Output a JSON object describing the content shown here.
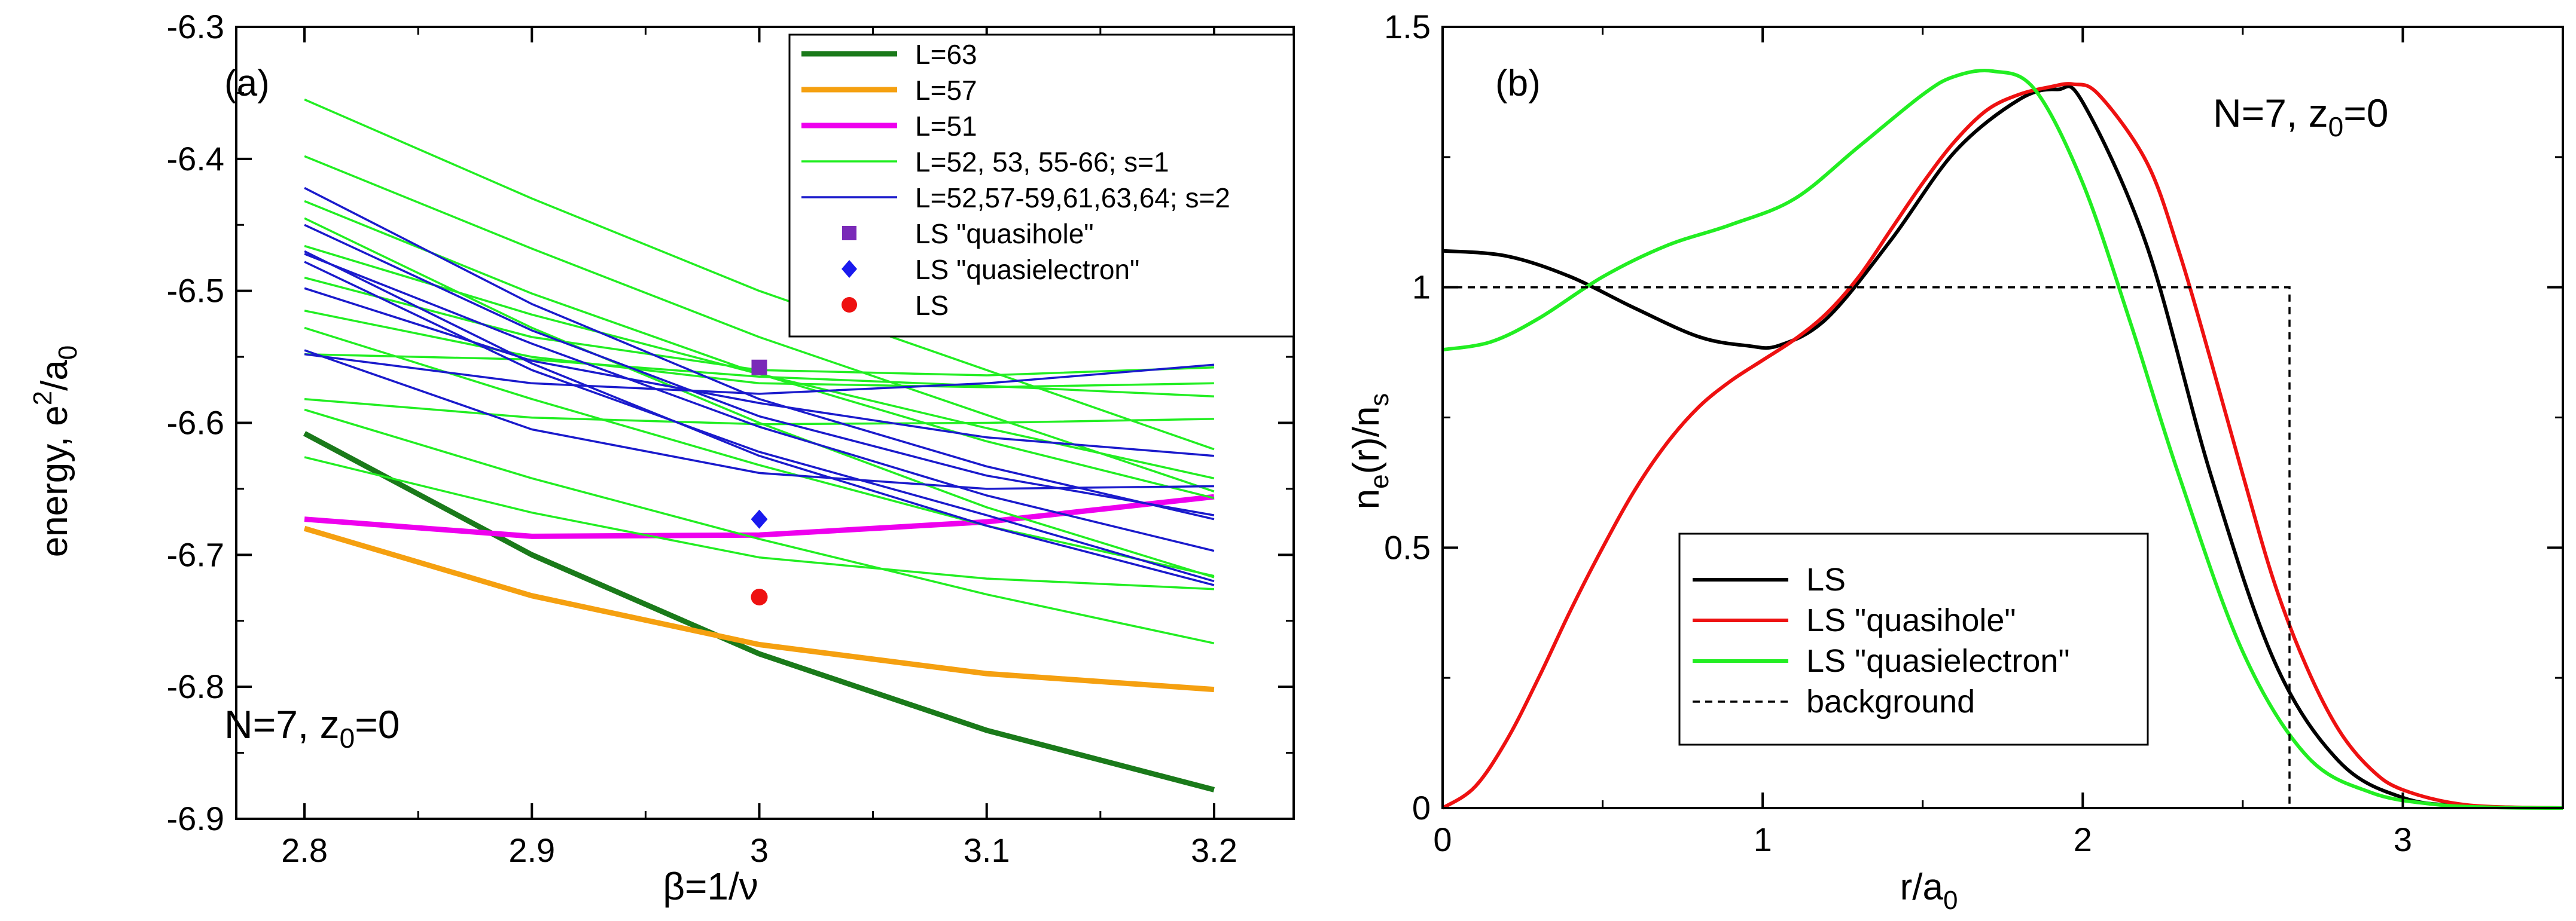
{
  "chart_data": [
    {
      "id": "a",
      "type": "line",
      "panel_label": "(a)",
      "xlabel": "β=1/ν",
      "ylabel": "energy, e²/a₀",
      "ylabel_main": "energy, e",
      "ylabel_sup": "2",
      "ylabel_mid": "/a",
      "ylabel_sub": "0",
      "xlim": [
        2.77,
        3.235
      ],
      "ylim": [
        -6.9,
        -6.3
      ],
      "x_ticks": [
        2.8,
        2.9,
        3.0,
        3.1,
        3.2
      ],
      "x_tick_labels": [
        "2.8",
        "2.9",
        "3",
        "3.1",
        "3.2"
      ],
      "y_ticks": [
        -6.9,
        -6.8,
        -6.7,
        -6.6,
        -6.5,
        -6.4,
        -6.3
      ],
      "y_tick_labels": [
        "-6.9",
        "-6.8",
        "-6.7",
        "-6.6",
        "-6.5",
        "-6.4",
        "-6.3"
      ],
      "annotation": {
        "text": "N=7,   z₀=0",
        "main": "N=7,   z",
        "sub": "0",
        "tail": "=0"
      },
      "legend": {
        "placement": "top-right",
        "entries": [
          {
            "label": "L=63",
            "color": "#1a7a1a",
            "kind": "line",
            "thick": true
          },
          {
            "label": "L=57",
            "color": "#f5a010",
            "kind": "line",
            "thick": true
          },
          {
            "label": "L=51",
            "color": "#ee00ee",
            "kind": "line",
            "thick": true
          },
          {
            "label": "L=52, 53, 55-66; s=1",
            "color": "#22ee22",
            "kind": "line",
            "thick": false
          },
          {
            "label": "L=52,57-59,61,63,64; s=2",
            "color": "#1a1acc",
            "kind": "line",
            "thick": false
          },
          {
            "label": "LS \"quasihole\"",
            "color": "#7a2ab8",
            "kind": "square"
          },
          {
            "label": "LS \"quasielectron\"",
            "color": "#1a1aee",
            "kind": "diamond"
          },
          {
            "label": "LS",
            "color": "#ee1111",
            "kind": "circle"
          }
        ]
      },
      "x": [
        2.8,
        2.9,
        3.0,
        3.1,
        3.2
      ],
      "series": [
        {
          "name": "L=63",
          "color": "#1a7a1a",
          "width": "thick",
          "values": [
            -6.608,
            -6.7,
            -6.775,
            -6.833,
            -6.878
          ]
        },
        {
          "name": "L=57",
          "color": "#f5a010",
          "width": "thick",
          "values": [
            -6.68,
            -6.731,
            -6.768,
            -6.79,
            -6.802
          ]
        },
        {
          "name": "L=51",
          "color": "#ee00ee",
          "width": "thick",
          "values": [
            -6.673,
            -6.686,
            -6.685,
            -6.675,
            -6.656
          ]
        },
        {
          "name": "s=1 a",
          "color": "#22ee22",
          "width": "thin",
          "values": [
            -6.355,
            -6.43,
            -6.5,
            -6.56,
            -6.62
          ]
        },
        {
          "name": "s=1 b",
          "color": "#22ee22",
          "width": "thin",
          "values": [
            -6.398,
            -6.468,
            -6.535,
            -6.594,
            -6.652
          ]
        },
        {
          "name": "s=1 c",
          "color": "#22ee22",
          "width": "thin",
          "values": [
            -6.432,
            -6.502,
            -6.563,
            -6.614,
            -6.657
          ]
        },
        {
          "name": "s=1 d",
          "color": "#22ee22",
          "width": "thin",
          "values": [
            -6.445,
            -6.528,
            -6.6,
            -6.664,
            -6.717
          ]
        },
        {
          "name": "s=1 e",
          "color": "#22ee22",
          "width": "thin",
          "values": [
            -6.466,
            -6.518,
            -6.563,
            -6.604,
            -6.642
          ]
        },
        {
          "name": "s=1 f",
          "color": "#22ee22",
          "width": "thin",
          "values": [
            -6.49,
            -6.535,
            -6.56,
            -6.564,
            -6.558
          ]
        },
        {
          "name": "s=1 g",
          "color": "#22ee22",
          "width": "thin",
          "values": [
            -6.515,
            -6.55,
            -6.57,
            -6.573,
            -6.57
          ]
        },
        {
          "name": "s=1 h",
          "color": "#22ee22",
          "width": "thin",
          "values": [
            -6.528,
            -6.582,
            -6.632,
            -6.678,
            -6.716
          ]
        },
        {
          "name": "s=1 i",
          "color": "#22ee22",
          "width": "thin",
          "values": [
            -6.548,
            -6.552,
            -6.565,
            -6.572,
            -6.58
          ]
        },
        {
          "name": "s=1 j",
          "color": "#22ee22",
          "width": "thin",
          "values": [
            -6.582,
            -6.596,
            -6.601,
            -6.6,
            -6.597
          ]
        },
        {
          "name": "s=1 k",
          "color": "#22ee22",
          "width": "thin",
          "values": [
            -6.59,
            -6.642,
            -6.688,
            -6.73,
            -6.767
          ]
        },
        {
          "name": "s=1 l",
          "color": "#22ee22",
          "width": "thin",
          "values": [
            -6.626,
            -6.668,
            -6.702,
            -6.718,
            -6.726
          ]
        },
        {
          "name": "s=2 a",
          "color": "#1a1acc",
          "width": "thin",
          "values": [
            -6.422,
            -6.51,
            -6.582,
            -6.633,
            -6.673
          ]
        },
        {
          "name": "s=2 b",
          "color": "#1a1acc",
          "width": "thin",
          "values": [
            -6.45,
            -6.53,
            -6.595,
            -6.64,
            -6.67
          ]
        },
        {
          "name": "s=2 c",
          "color": "#1a1acc",
          "width": "thin",
          "values": [
            -6.472,
            -6.54,
            -6.603,
            -6.655,
            -6.697
          ]
        },
        {
          "name": "s=2 d",
          "color": "#1a1acc",
          "width": "thin",
          "values": [
            -6.478,
            -6.56,
            -6.622,
            -6.67,
            -6.72
          ]
        },
        {
          "name": "s=2 e",
          "color": "#1a1acc",
          "width": "thin",
          "values": [
            -6.47,
            -6.555,
            -6.625,
            -6.678,
            -6.723
          ]
        },
        {
          "name": "s=2 f",
          "color": "#1a1acc",
          "width": "thin",
          "values": [
            -6.548,
            -6.57,
            -6.578,
            -6.57,
            -6.556
          ]
        },
        {
          "name": "s=2 g",
          "color": "#1a1acc",
          "width": "thin",
          "values": [
            -6.545,
            -6.605,
            -6.638,
            -6.65,
            -6.648
          ]
        },
        {
          "name": "s=2 h",
          "color": "#1a1acc",
          "width": "thin",
          "values": [
            -6.498,
            -6.553,
            -6.585,
            -6.611,
            -6.625
          ]
        }
      ],
      "points": [
        {
          "name": "LS \"quasihole\"",
          "x": 3.0,
          "y": -6.558,
          "marker": "square",
          "color": "#7a2ab8"
        },
        {
          "name": "LS \"quasielectron\"",
          "x": 3.0,
          "y": -6.673,
          "marker": "diamond",
          "color": "#1a1aee"
        },
        {
          "name": "LS",
          "x": 3.0,
          "y": -6.732,
          "marker": "circle",
          "color": "#ee1111"
        }
      ]
    },
    {
      "id": "b",
      "type": "line",
      "panel_label": "(b)",
      "xlabel": "r/a₀",
      "xlabel_main": "r/a",
      "xlabel_sub": "0",
      "ylabel": "nₑ(r)/nₛ",
      "ylabel_p1": "n",
      "ylabel_s1": "e",
      "ylabel_p2": "(r)/n",
      "ylabel_s2": "s",
      "xlim": [
        0,
        3.5
      ],
      "ylim": [
        0,
        1.5
      ],
      "x_ticks": [
        0,
        1,
        2,
        3
      ],
      "x_tick_labels": [
        "0",
        "1",
        "2",
        "3"
      ],
      "y_ticks": [
        0,
        0.5,
        1,
        1.5
      ],
      "y_tick_labels": [
        "0",
        "0.5",
        "1",
        "1.5"
      ],
      "annotation": {
        "text": "N=7,  z₀=0",
        "main": "N=7,  z",
        "sub": "0",
        "tail": "=0"
      },
      "legend": {
        "placement": "bottom-center",
        "entries": [
          {
            "label": "LS",
            "color": "#000000",
            "dashed": false
          },
          {
            "label": "LS \"quasihole\"",
            "color": "#ee1111",
            "dashed": false
          },
          {
            "label": "LS \"quasielectron\"",
            "color": "#22ee22",
            "dashed": false
          },
          {
            "label": "background",
            "color": "#000000",
            "dashed": true
          }
        ]
      },
      "series": [
        {
          "name": "LS",
          "color": "#000000",
          "dashed": false,
          "x": [
            0,
            0.2,
            0.4,
            0.6,
            0.8,
            0.95,
            1.05,
            1.2,
            1.4,
            1.6,
            1.8,
            1.92,
            2.0,
            2.2,
            2.4,
            2.6,
            2.8,
            3.0,
            3.2,
            3.5
          ],
          "values": [
            1.07,
            1.06,
            1.02,
            0.96,
            0.905,
            0.888,
            0.888,
            0.94,
            1.09,
            1.26,
            1.36,
            1.38,
            1.355,
            1.08,
            0.64,
            0.28,
            0.09,
            0.02,
            0.004,
            0.0
          ]
        },
        {
          "name": "LS \"quasihole\"",
          "color": "#ee1111",
          "dashed": false,
          "x": [
            0,
            0.1,
            0.2,
            0.3,
            0.4,
            0.5,
            0.6,
            0.7,
            0.8,
            0.9,
            1.0,
            1.1,
            1.2,
            1.3,
            1.4,
            1.5,
            1.6,
            1.7,
            1.8,
            1.9,
            1.97,
            2.05,
            2.2,
            2.3,
            2.4,
            2.5,
            2.6,
            2.7,
            2.8,
            2.9,
            3.0,
            3.2,
            3.5
          ],
          "values": [
            0.0,
            0.04,
            0.13,
            0.25,
            0.38,
            0.5,
            0.61,
            0.7,
            0.77,
            0.82,
            0.86,
            0.9,
            0.95,
            1.02,
            1.11,
            1.2,
            1.28,
            1.34,
            1.37,
            1.385,
            1.39,
            1.37,
            1.24,
            1.07,
            0.86,
            0.64,
            0.43,
            0.27,
            0.15,
            0.075,
            0.035,
            0.006,
            0.0
          ]
        },
        {
          "name": "LS \"quasielectron\"",
          "color": "#22ee22",
          "dashed": false,
          "x": [
            0,
            0.15,
            0.3,
            0.5,
            0.7,
            0.9,
            1.1,
            1.3,
            1.5,
            1.6,
            1.72,
            1.85,
            2.0,
            2.15,
            2.3,
            2.5,
            2.7,
            2.9,
            3.1,
            3.3,
            3.5
          ],
          "values": [
            0.88,
            0.895,
            0.94,
            1.02,
            1.08,
            1.12,
            1.17,
            1.27,
            1.37,
            1.405,
            1.415,
            1.38,
            1.2,
            0.93,
            0.64,
            0.3,
            0.1,
            0.03,
            0.007,
            0.001,
            0.0
          ]
        },
        {
          "name": "background",
          "color": "#000000",
          "dashed": true,
          "x": [
            0,
            2.646,
            2.646
          ],
          "values": [
            1.0,
            1.0,
            0.0
          ]
        }
      ]
    }
  ]
}
